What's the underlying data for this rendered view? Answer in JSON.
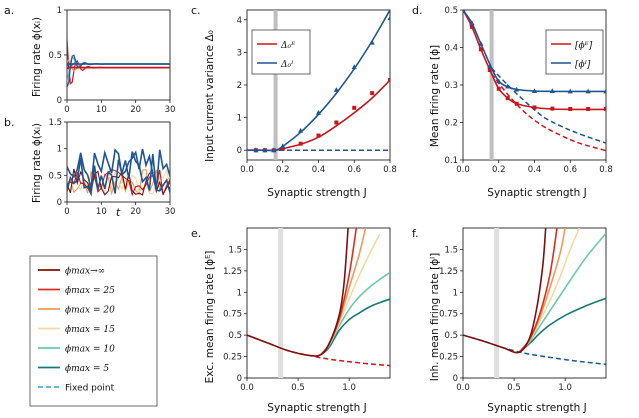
{
  "colors": {
    "red": "#c8161d",
    "blue": "#1f5592",
    "gray": "#bfbfbf",
    "phi_inf": "#7b1010",
    "phi_25": "#d7301f",
    "phi_20": "#f09a5a",
    "phi_15": "#f6d9a0",
    "phi_10": "#6ccaa9",
    "phi_5": "#147a74",
    "fixed": "#5aaad6"
  },
  "chart_data": [
    {
      "id": "a",
      "panel_label": "a.",
      "type": "line",
      "ylabel": "Firing rate ϕ(xᵢ)",
      "xlim": [
        0,
        30
      ],
      "ylim": [
        0,
        1.0
      ],
      "xticks": [
        "0",
        "10",
        "20",
        "30"
      ],
      "yticks": [
        "0",
        "0.5",
        "1"
      ],
      "fixed_points": [
        0.36,
        0.4
      ]
    },
    {
      "id": "b",
      "panel_label": "b.",
      "type": "line",
      "ylabel": "Firing rate ϕ(xᵢ)",
      "xlabel": "t",
      "xlim": [
        0,
        30
      ],
      "ylim": [
        0,
        1.5
      ],
      "xticks": [
        "0",
        "10",
        "20",
        "30"
      ],
      "yticks": [
        "0",
        "0.5",
        "1",
        "1.5"
      ]
    },
    {
      "id": "c",
      "panel_label": "c.",
      "type": "line",
      "ylabel": "Input current variance Δ₀",
      "xlabel": "Synaptic strength J",
      "xlim": [
        0,
        0.8
      ],
      "ylim": [
        -0.3,
        4.3
      ],
      "xticks": [
        "0.0",
        "0.2",
        "0.4",
        "0.6",
        "0.8"
      ],
      "yticks": [
        "0",
        "1",
        "2",
        "3",
        "4"
      ],
      "critical_J": 0.16,
      "legend": [
        "Δ₀ᴱ",
        "Δ₀ᴵ"
      ],
      "series": [
        {
          "name": "E theory",
          "x": [
            0,
            0.05,
            0.1,
            0.16,
            0.2,
            0.3,
            0.4,
            0.5,
            0.6,
            0.7,
            0.8
          ],
          "values": [
            0,
            0,
            0,
            0,
            0.05,
            0.18,
            0.4,
            0.75,
            1.15,
            1.6,
            2.15
          ]
        },
        {
          "name": "I theory",
          "x": [
            0,
            0.05,
            0.1,
            0.16,
            0.2,
            0.3,
            0.4,
            0.5,
            0.6,
            0.7,
            0.8
          ],
          "values": [
            0,
            0,
            0,
            0,
            0.12,
            0.55,
            1.1,
            1.75,
            2.5,
            3.35,
            4.3
          ]
        },
        {
          "name": "E sim",
          "x": [
            0.05,
            0.1,
            0.15,
            0.2,
            0.3,
            0.4,
            0.5,
            0.6,
            0.7,
            0.8
          ],
          "values": [
            0,
            0,
            0,
            0.05,
            0.2,
            0.45,
            0.85,
            1.3,
            1.75,
            2.15
          ]
        },
        {
          "name": "I sim",
          "x": [
            0.05,
            0.1,
            0.15,
            0.2,
            0.3,
            0.4,
            0.5,
            0.6,
            0.7,
            0.8
          ],
          "values": [
            0,
            0,
            0,
            0.12,
            0.6,
            1.15,
            1.85,
            2.55,
            3.3,
            4.05
          ]
        },
        {
          "name": "unstable",
          "x": [
            0,
            0.8
          ],
          "values": [
            0,
            0
          ]
        }
      ]
    },
    {
      "id": "d",
      "panel_label": "d.",
      "type": "line",
      "ylabel": "Mean firing rate [ϕ]",
      "xlabel": "Synaptic strength J",
      "xlim": [
        0,
        0.8
      ],
      "ylim": [
        0.1,
        0.5
      ],
      "xticks": [
        "0.0",
        "0.2",
        "0.4",
        "0.6",
        "0.8"
      ],
      "yticks": [
        "0.1",
        "0.2",
        "0.3",
        "0.4",
        "0.5"
      ],
      "critical_J": 0.16,
      "legend": [
        "[ϕᴱ]",
        "[ϕᴵ]"
      ],
      "series": [
        {
          "name": "E theory",
          "x": [
            0,
            0.05,
            0.1,
            0.16,
            0.2,
            0.25,
            0.3,
            0.4,
            0.5,
            0.6,
            0.7,
            0.8
          ],
          "values": [
            0.5,
            0.455,
            0.395,
            0.33,
            0.29,
            0.265,
            0.25,
            0.24,
            0.236,
            0.235,
            0.235,
            0.235
          ]
        },
        {
          "name": "I theory",
          "x": [
            0,
            0.05,
            0.1,
            0.16,
            0.2,
            0.25,
            0.3,
            0.4,
            0.5,
            0.6,
            0.7,
            0.8
          ],
          "values": [
            0.5,
            0.465,
            0.41,
            0.345,
            0.31,
            0.295,
            0.288,
            0.284,
            0.283,
            0.283,
            0.283,
            0.283
          ]
        },
        {
          "name": "E unstable",
          "x": [
            0.16,
            0.25,
            0.35,
            0.45,
            0.55,
            0.65,
            0.8
          ],
          "values": [
            0.33,
            0.275,
            0.225,
            0.19,
            0.165,
            0.145,
            0.125
          ]
        },
        {
          "name": "I unstable",
          "x": [
            0.16,
            0.25,
            0.35,
            0.45,
            0.55,
            0.65,
            0.8
          ],
          "values": [
            0.345,
            0.3,
            0.255,
            0.215,
            0.19,
            0.17,
            0.145
          ]
        },
        {
          "name": "E sim",
          "x": [
            0,
            0.05,
            0.1,
            0.15,
            0.2,
            0.25,
            0.3,
            0.4,
            0.5,
            0.6,
            0.7,
            0.8
          ],
          "values": [
            0.5,
            0.455,
            0.395,
            0.34,
            0.29,
            0.265,
            0.25,
            0.24,
            0.237,
            0.236,
            0.236,
            0.236
          ]
        },
        {
          "name": "I sim",
          "x": [
            0,
            0.05,
            0.1,
            0.15,
            0.2,
            0.25,
            0.3,
            0.4,
            0.5,
            0.6,
            0.7,
            0.8
          ],
          "values": [
            0.5,
            0.465,
            0.41,
            0.35,
            0.31,
            0.296,
            0.288,
            0.284,
            0.284,
            0.283,
            0.283,
            0.283
          ]
        }
      ]
    },
    {
      "id": "e",
      "panel_label": "e.",
      "type": "line",
      "ylabel": "Exc. mean firing rate [ϕᴱ]",
      "xlabel": "Synaptic strength J",
      "xlim": [
        0,
        1.4
      ],
      "ylim": [
        0,
        1.75
      ],
      "xticks": [
        "0.0",
        "0.5",
        "1.0"
      ],
      "yticks": [
        "0",
        "0.25",
        "0.5",
        "0.75",
        "1",
        "1.25",
        "1.5"
      ],
      "critical_J": 0.33,
      "curves": [
        {
          "name": "fixed",
          "x": [
            0,
            0.2,
            0.4,
            0.6,
            0.8,
            1.0,
            1.2,
            1.4
          ],
          "values": [
            0.5,
            0.41,
            0.32,
            0.265,
            0.22,
            0.19,
            0.165,
            0.145
          ]
        },
        {
          "name": "5",
          "x": [
            0.72,
            0.8,
            0.9,
            1.0,
            1.1,
            1.2,
            1.3,
            1.4
          ],
          "values": [
            0.27,
            0.35,
            0.55,
            0.68,
            0.76,
            0.83,
            0.88,
            0.92
          ]
        },
        {
          "name": "10",
          "x": [
            0.72,
            0.8,
            0.9,
            1.0,
            1.1,
            1.2,
            1.3,
            1.4
          ],
          "values": [
            0.27,
            0.37,
            0.6,
            0.8,
            0.95,
            1.06,
            1.15,
            1.23
          ]
        },
        {
          "name": "15",
          "x": [
            0.72,
            0.8,
            0.9,
            1.0,
            1.1,
            1.2,
            1.3
          ],
          "values": [
            0.27,
            0.38,
            0.63,
            0.92,
            1.2,
            1.45,
            1.68
          ]
        },
        {
          "name": "20",
          "x": [
            0.72,
            0.8,
            0.9,
            1.0,
            1.1,
            1.16
          ],
          "values": [
            0.27,
            0.385,
            0.66,
            1.05,
            1.45,
            1.75
          ]
        },
        {
          "name": "25",
          "x": [
            0.72,
            0.8,
            0.9,
            1.0,
            1.07
          ],
          "values": [
            0.27,
            0.39,
            0.68,
            1.2,
            1.75
          ]
        },
        {
          "name": "inf",
          "x": [
            0,
            0.2,
            0.4,
            0.6,
            0.72,
            0.8,
            0.9,
            0.95,
            0.99
          ],
          "values": [
            0.5,
            0.41,
            0.32,
            0.265,
            0.27,
            0.39,
            0.72,
            1.1,
            1.75
          ]
        }
      ]
    },
    {
      "id": "f",
      "panel_label": "f.",
      "type": "line",
      "ylabel": "Inh. mean firing rate [ϕᴵ]",
      "xlabel": "Synaptic strength J",
      "xlim": [
        0,
        1.4
      ],
      "ylim": [
        0,
        1.75
      ],
      "xticks": [
        "0.0",
        "0.5",
        "1.0"
      ],
      "yticks": [
        "0",
        "0.25",
        "0.5",
        "0.75",
        "1",
        "1.25",
        "1.5"
      ],
      "critical_J": 0.33,
      "curves": [
        {
          "name": "fixed",
          "x": [
            0,
            0.2,
            0.4,
            0.6,
            0.8,
            1.0,
            1.2,
            1.4
          ],
          "values": [
            0.5,
            0.43,
            0.35,
            0.29,
            0.25,
            0.215,
            0.185,
            0.16
          ]
        },
        {
          "name": "5",
          "x": [
            0.55,
            0.65,
            0.75,
            0.85,
            1.0,
            1.2,
            1.4
          ],
          "values": [
            0.3,
            0.4,
            0.52,
            0.62,
            0.73,
            0.84,
            0.93
          ]
        },
        {
          "name": "10",
          "x": [
            0.55,
            0.65,
            0.75,
            0.85,
            1.0,
            1.2,
            1.4
          ],
          "values": [
            0.3,
            0.42,
            0.6,
            0.78,
            1.05,
            1.4,
            1.69
          ]
        },
        {
          "name": "15",
          "x": [
            0.55,
            0.65,
            0.75,
            0.85,
            0.95,
            1.05,
            1.14
          ],
          "values": [
            0.3,
            0.43,
            0.66,
            0.9,
            1.18,
            1.5,
            1.75
          ]
        },
        {
          "name": "20",
          "x": [
            0.55,
            0.65,
            0.75,
            0.85,
            0.95,
            1.0
          ],
          "values": [
            0.3,
            0.44,
            0.7,
            1.05,
            1.45,
            1.75
          ]
        },
        {
          "name": "25",
          "x": [
            0.55,
            0.65,
            0.75,
            0.85,
            0.92
          ],
          "values": [
            0.3,
            0.45,
            0.74,
            1.2,
            1.75
          ]
        },
        {
          "name": "inf",
          "x": [
            0,
            0.2,
            0.4,
            0.55,
            0.65,
            0.72,
            0.78,
            0.81
          ],
          "values": [
            0.5,
            0.43,
            0.35,
            0.3,
            0.46,
            0.8,
            1.3,
            1.75
          ]
        }
      ]
    }
  ],
  "legend_phi": {
    "items": [
      {
        "key": "phi_inf",
        "label": "ϕmax→∞"
      },
      {
        "key": "phi_25",
        "label": "ϕmax = 25"
      },
      {
        "key": "phi_20",
        "label": "ϕmax = 20"
      },
      {
        "key": "phi_15",
        "label": "ϕmax = 15"
      },
      {
        "key": "phi_10",
        "label": "ϕmax = 10"
      },
      {
        "key": "phi_5",
        "label": "ϕmax = 5"
      },
      {
        "key": "fixed",
        "label": "Fixed point"
      }
    ]
  }
}
